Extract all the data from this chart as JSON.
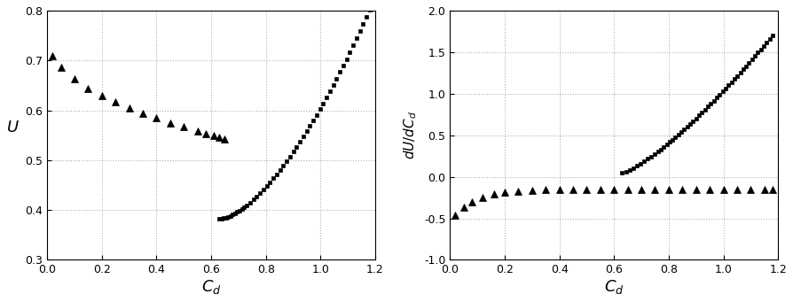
{
  "left_xlabel": "$C_d$",
  "left_ylabel": "$U$",
  "right_xlabel": "$C_d$",
  "right_ylabel": "$dU/dC_d$",
  "left_xlim": [
    0.0,
    1.2
  ],
  "left_ylim": [
    0.3,
    0.8
  ],
  "right_xlim": [
    0.0,
    1.2
  ],
  "right_ylim": [
    -1.0,
    2.0
  ],
  "left_xticks": [
    0.0,
    0.2,
    0.4,
    0.6,
    0.8,
    1.0,
    1.2
  ],
  "left_yticks": [
    0.3,
    0.4,
    0.5,
    0.6,
    0.7,
    0.8
  ],
  "right_xticks": [
    0.0,
    0.2,
    0.4,
    0.6,
    0.8,
    1.0,
    1.2
  ],
  "right_yticks": [
    -1.0,
    -0.5,
    0.0,
    0.5,
    1.0,
    1.5,
    2.0
  ],
  "marker_color": "black",
  "background": "white",
  "grid_color": "#b0b0b0",
  "grid_style": ":"
}
